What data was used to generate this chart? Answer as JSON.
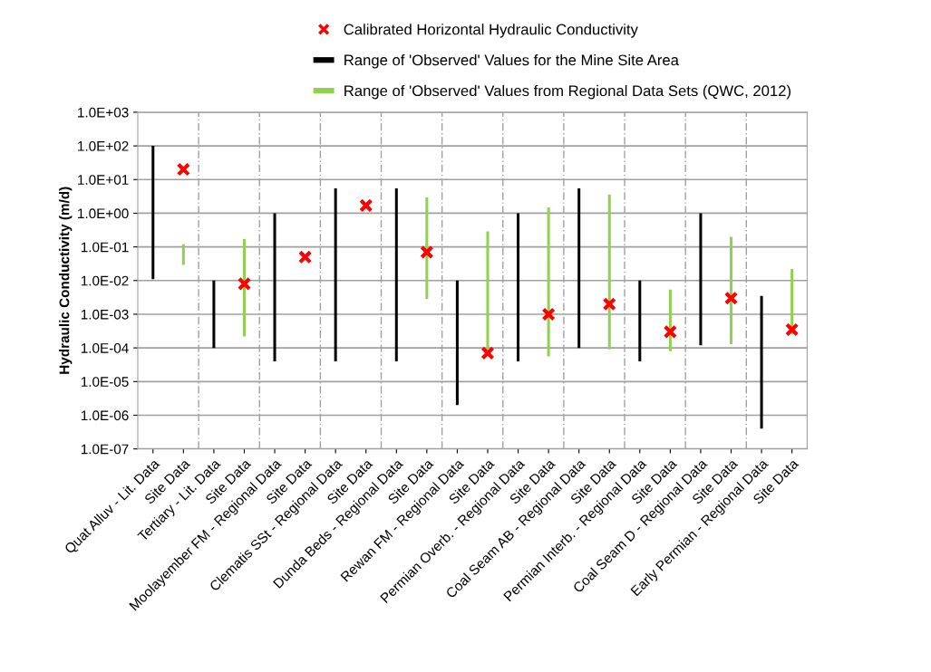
{
  "chart_data": {
    "type": "bar",
    "ylabel": "Hydraulic Conductivity (m/d)",
    "categories": [
      "Quat Alluv - Lit. Data",
      "Site Data",
      "Tertiary - Lit. Data",
      "Site Data",
      "Moolayember FM - Regional Data",
      "Site Data",
      "Clematis SSt - Regional Data",
      "Site Data",
      "Dunda Beds - Regional Data",
      "Site Data",
      "Rewan FM - Regional Data",
      "Site Data",
      "Permian Overb. - Regional Data",
      "Site Data",
      "Coal Seam AB - Regional Data",
      "Site Data",
      "Permian Interb. - Regional Data",
      "Site Data",
      "Coal Seam D - Regional Data",
      "Site Data",
      "Early Permian - Regional Data",
      "Site Data"
    ],
    "series": [
      {
        "name": "Calibrated Horizontal Hydraulic Conductivity",
        "type": "scatter",
        "marker": "cross",
        "color": "#ff0000",
        "values": [
          null,
          20,
          null,
          0.008,
          null,
          0.05,
          null,
          1.7,
          null,
          0.07,
          null,
          7e-05,
          null,
          0.001,
          null,
          0.002,
          null,
          0.0003,
          null,
          0.003,
          null,
          0.00035
        ]
      },
      {
        "name": "Range of 'Observed' Values for the Mine Site Area",
        "color": "#000000",
        "base": [
          0.011,
          null,
          0.0001,
          null,
          4e-05,
          null,
          4e-05,
          null,
          4e-05,
          null,
          2e-06,
          null,
          4e-05,
          null,
          0.0001,
          null,
          4e-05,
          null,
          0.00012,
          null,
          4e-07,
          null
        ],
        "values": [
          99.989,
          null,
          0.0099,
          null,
          0.99996,
          null,
          5.49996,
          null,
          5.49996,
          null,
          0.009998,
          null,
          0.99996,
          null,
          5.4999,
          null,
          0.00996,
          null,
          0.99988,
          null,
          0.0034996,
          null
        ]
      },
      {
        "name": "Range of 'Observed' Values from Regional Data Sets (QWC, 2012)",
        "color": "#92d050",
        "base": [
          null,
          0.029,
          null,
          0.00022,
          null,
          null,
          null,
          null,
          null,
          0.0028,
          null,
          8e-05,
          null,
          5.6e-05,
          null,
          9e-05,
          null,
          8e-05,
          null,
          0.00013,
          null,
          0.00025
        ],
        "values": [
          null,
          0.091,
          null,
          0.16978,
          null,
          null,
          null,
          null,
          null,
          2.9972,
          null,
          0.28992,
          null,
          1.499944,
          null,
          3.59991,
          null,
          0.00532,
          null,
          0.19987,
          null,
          0.02175
        ]
      }
    ],
    "log": true,
    "ylim": [
      1e-07,
      1000
    ],
    "yticks": [
      {
        "value": 1e-07,
        "label": "1.0E-07"
      },
      {
        "value": 1e-06,
        "label": "1.0E-06"
      },
      {
        "value": 1e-05,
        "label": "1.0E-05"
      },
      {
        "value": 0.0001,
        "label": "1.0E-04"
      },
      {
        "value": 0.001,
        "label": "1.0E-03"
      },
      {
        "value": 0.01,
        "label": "1.0E-02"
      },
      {
        "value": 0.1,
        "label": "1.0E-01"
      },
      {
        "value": 1,
        "label": "1.0E+00"
      },
      {
        "value": 10,
        "label": "1.0E+01"
      },
      {
        "value": 100,
        "label": "1.0E+02"
      },
      {
        "value": 1000,
        "label": "1.0E+03"
      }
    ],
    "grid": true,
    "legend": "top"
  }
}
